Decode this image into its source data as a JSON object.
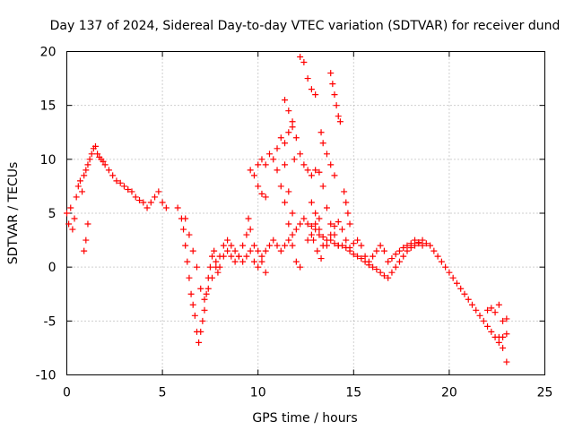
{
  "chart_data": {
    "type": "scatter",
    "title": "Day 137 of 2024, Sidereal Day-to-day VTEC variation (SDTVAR) for receiver dund",
    "xlabel": "GPS time / hours",
    "ylabel": "SDTVAR / TECUs",
    "xlim": [
      0,
      25
    ],
    "ylim": [
      -10,
      20
    ],
    "xticks": [
      0,
      5,
      10,
      15,
      20,
      25
    ],
    "yticks": [
      -10,
      -5,
      0,
      5,
      10,
      15,
      20
    ],
    "xtick_labels": [
      "0",
      "5",
      "10",
      "15",
      "20",
      "25"
    ],
    "ytick_labels": [
      "-10",
      "-5",
      "0",
      "5",
      "10",
      "15",
      "20"
    ],
    "grid": true,
    "marker": "+",
    "color": "#ff0000",
    "series": [
      {
        "name": "main-trace",
        "points": [
          [
            0.0,
            5.0
          ],
          [
            0.1,
            4.0
          ],
          [
            0.2,
            5.5
          ],
          [
            0.3,
            3.5
          ],
          [
            0.4,
            4.5
          ],
          [
            0.5,
            6.5
          ],
          [
            0.6,
            7.5
          ],
          [
            0.7,
            8.0
          ],
          [
            0.8,
            7.0
          ],
          [
            0.9,
            8.5
          ],
          [
            1.0,
            9.0
          ],
          [
            1.1,
            9.5
          ],
          [
            1.2,
            10.0
          ],
          [
            1.3,
            10.5
          ],
          [
            1.4,
            11.0
          ],
          [
            1.5,
            11.2
          ],
          [
            1.6,
            10.5
          ],
          [
            1.7,
            10.2
          ],
          [
            1.8,
            10.0
          ],
          [
            1.9,
            9.8
          ],
          [
            2.0,
            9.5
          ],
          [
            2.2,
            9.0
          ],
          [
            2.4,
            8.5
          ],
          [
            2.6,
            8.0
          ],
          [
            2.8,
            7.8
          ],
          [
            3.0,
            7.5
          ],
          [
            3.2,
            7.2
          ],
          [
            3.4,
            7.0
          ],
          [
            3.6,
            6.5
          ],
          [
            3.8,
            6.2
          ],
          [
            4.0,
            6.0
          ],
          [
            4.2,
            5.5
          ],
          [
            4.4,
            6.0
          ],
          [
            4.6,
            6.5
          ],
          [
            4.8,
            7.0
          ],
          [
            5.0,
            6.0
          ],
          [
            5.2,
            5.5
          ],
          [
            5.8,
            5.5
          ],
          [
            6.0,
            4.5
          ],
          [
            6.1,
            3.5
          ],
          [
            6.2,
            2.0
          ],
          [
            6.3,
            0.5
          ],
          [
            6.4,
            -1.0
          ],
          [
            6.5,
            -2.5
          ],
          [
            6.6,
            -3.5
          ],
          [
            6.7,
            -4.5
          ],
          [
            6.8,
            -6.0
          ],
          [
            6.9,
            -7.0
          ],
          [
            7.0,
            -6.0
          ],
          [
            7.1,
            -5.0
          ],
          [
            7.2,
            -4.0
          ],
          [
            7.3,
            -2.5
          ],
          [
            7.4,
            -1.0
          ],
          [
            7.5,
            0.0
          ],
          [
            7.6,
            1.0
          ],
          [
            7.7,
            1.5
          ],
          [
            7.8,
            0.5
          ],
          [
            7.9,
            -0.5
          ],
          [
            8.0,
            0.0
          ],
          [
            8.2,
            1.0
          ],
          [
            8.4,
            1.5
          ],
          [
            8.6,
            1.0
          ],
          [
            8.8,
            0.5
          ],
          [
            9.0,
            1.0
          ],
          [
            9.2,
            0.5
          ],
          [
            9.4,
            1.0
          ],
          [
            9.6,
            1.5
          ],
          [
            9.8,
            0.5
          ],
          [
            10.0,
            0.0
          ],
          [
            10.2,
            1.0
          ],
          [
            10.4,
            1.5
          ],
          [
            10.6,
            2.0
          ],
          [
            10.8,
            2.5
          ],
          [
            11.0,
            2.0
          ],
          [
            11.2,
            1.5
          ],
          [
            11.4,
            2.0
          ],
          [
            11.6,
            2.5
          ],
          [
            11.8,
            3.0
          ],
          [
            12.0,
            3.5
          ],
          [
            12.2,
            4.0
          ],
          [
            12.4,
            4.5
          ],
          [
            12.6,
            4.0
          ],
          [
            12.8,
            3.8
          ],
          [
            13.0,
            3.5
          ],
          [
            13.2,
            3.0
          ],
          [
            13.4,
            2.8
          ],
          [
            13.6,
            2.5
          ],
          [
            13.8,
            2.5
          ],
          [
            14.0,
            2.2
          ],
          [
            14.2,
            2.0
          ],
          [
            14.4,
            2.0
          ],
          [
            14.6,
            1.8
          ],
          [
            14.8,
            1.5
          ],
          [
            15.0,
            1.2
          ],
          [
            15.2,
            1.0
          ],
          [
            15.4,
            0.8
          ],
          [
            15.6,
            0.5
          ],
          [
            15.8,
            0.2
          ],
          [
            16.0,
            0.0
          ],
          [
            16.2,
            -0.2
          ],
          [
            16.4,
            -0.5
          ],
          [
            16.6,
            -0.8
          ],
          [
            16.8,
            -1.0
          ],
          [
            17.0,
            -0.5
          ],
          [
            17.2,
            0.0
          ],
          [
            17.4,
            0.5
          ],
          [
            17.6,
            1.0
          ],
          [
            17.8,
            1.5
          ],
          [
            18.0,
            1.8
          ],
          [
            18.2,
            2.0
          ],
          [
            18.4,
            2.2
          ],
          [
            18.6,
            2.5
          ],
          [
            18.8,
            2.2
          ],
          [
            19.0,
            2.0
          ],
          [
            19.2,
            1.5
          ],
          [
            19.4,
            1.0
          ],
          [
            19.6,
            0.5
          ],
          [
            19.8,
            0.0
          ],
          [
            20.0,
            -0.5
          ],
          [
            20.2,
            -1.0
          ],
          [
            20.4,
            -1.5
          ],
          [
            20.6,
            -2.0
          ],
          [
            20.8,
            -2.5
          ],
          [
            21.0,
            -3.0
          ],
          [
            21.2,
            -3.5
          ],
          [
            21.4,
            -4.0
          ],
          [
            21.6,
            -4.5
          ],
          [
            21.8,
            -5.0
          ],
          [
            22.0,
            -5.5
          ],
          [
            22.2,
            -6.0
          ],
          [
            22.4,
            -6.5
          ],
          [
            22.6,
            -7.0
          ],
          [
            22.8,
            -7.5
          ],
          [
            23.0,
            -8.8
          ]
        ]
      },
      {
        "name": "secondary-trace",
        "points": [
          [
            0.9,
            1.5
          ],
          [
            1.0,
            2.5
          ],
          [
            1.1,
            4.0
          ],
          [
            6.2,
            4.5
          ],
          [
            6.4,
            3.0
          ],
          [
            6.6,
            1.5
          ],
          [
            6.8,
            0.0
          ],
          [
            7.0,
            -2.0
          ],
          [
            7.2,
            -3.0
          ],
          [
            7.4,
            -2.0
          ],
          [
            7.6,
            -1.0
          ],
          [
            7.8,
            0.0
          ],
          [
            8.0,
            1.0
          ],
          [
            8.2,
            2.0
          ],
          [
            8.4,
            2.5
          ],
          [
            8.6,
            2.0
          ],
          [
            8.8,
            1.5
          ],
          [
            9.0,
            1.0
          ],
          [
            9.2,
            2.0
          ],
          [
            9.4,
            3.0
          ],
          [
            9.5,
            4.5
          ],
          [
            9.6,
            3.5
          ],
          [
            9.8,
            2.0
          ],
          [
            10.0,
            1.5
          ],
          [
            10.2,
            0.5
          ],
          [
            10.4,
            -0.5
          ],
          [
            12.6,
            2.5
          ],
          [
            12.8,
            3.0
          ],
          [
            13.0,
            4.0
          ],
          [
            13.2,
            3.5
          ],
          [
            13.4,
            2.0
          ],
          [
            13.6,
            2.0
          ],
          [
            13.8,
            3.0
          ],
          [
            14.0,
            3.8
          ],
          [
            14.2,
            4.2
          ],
          [
            14.4,
            3.5
          ],
          [
            14.6,
            2.5
          ],
          [
            14.8,
            1.8
          ],
          [
            15.0,
            2.2
          ],
          [
            15.2,
            2.5
          ],
          [
            15.4,
            2.0
          ],
          [
            15.6,
            1.0
          ],
          [
            15.8,
            0.5
          ],
          [
            16.0,
            1.0
          ],
          [
            16.2,
            1.5
          ],
          [
            16.4,
            2.0
          ],
          [
            16.6,
            1.5
          ],
          [
            16.8,
            0.5
          ],
          [
            17.0,
            0.8
          ],
          [
            17.2,
            1.2
          ],
          [
            17.4,
            1.5
          ],
          [
            17.6,
            1.8
          ],
          [
            17.8,
            2.0
          ],
          [
            18.0,
            2.2
          ],
          [
            18.2,
            2.5
          ],
          [
            18.4,
            2.3
          ],
          [
            18.6,
            2.0
          ],
          [
            22.0,
            -4.0
          ],
          [
            22.2,
            -3.8
          ],
          [
            22.4,
            -4.2
          ],
          [
            22.6,
            -3.5
          ],
          [
            22.8,
            -5.0
          ],
          [
            23.0,
            -4.8
          ],
          [
            22.6,
            -6.5
          ],
          [
            22.8,
            -6.5
          ],
          [
            23.0,
            -6.2
          ]
        ]
      },
      {
        "name": "segment-9-to-12",
        "points": [
          [
            9.6,
            9.0
          ],
          [
            9.8,
            8.5
          ],
          [
            10.0,
            9.5
          ],
          [
            10.2,
            10.0
          ],
          [
            10.4,
            9.5
          ],
          [
            10.6,
            10.5
          ],
          [
            10.8,
            10.0
          ],
          [
            11.0,
            9.0
          ],
          [
            11.2,
            7.5
          ],
          [
            11.4,
            6.0
          ],
          [
            11.6,
            4.0
          ],
          [
            11.8,
            2.0
          ],
          [
            12.0,
            0.5
          ],
          [
            12.2,
            0.0
          ],
          [
            10.0,
            7.5
          ],
          [
            10.2,
            6.8
          ],
          [
            10.4,
            6.5
          ],
          [
            11.4,
            11.5
          ],
          [
            11.6,
            12.5
          ],
          [
            11.8,
            13.0
          ],
          [
            11.9,
            10.0
          ],
          [
            11.0,
            11.0
          ],
          [
            11.2,
            12.0
          ],
          [
            11.4,
            9.5
          ],
          [
            11.6,
            7.0
          ],
          [
            11.8,
            5.0
          ]
        ]
      },
      {
        "name": "segment-12-to-14",
        "points": [
          [
            11.4,
            15.5
          ],
          [
            11.6,
            14.5
          ],
          [
            11.8,
            13.5
          ],
          [
            12.0,
            12.0
          ],
          [
            12.2,
            10.5
          ],
          [
            12.4,
            9.5
          ],
          [
            12.6,
            9.0
          ],
          [
            12.8,
            8.5
          ],
          [
            13.0,
            9.0
          ],
          [
            13.2,
            8.8
          ],
          [
            13.4,
            7.5
          ],
          [
            13.6,
            5.5
          ],
          [
            13.8,
            4.0
          ],
          [
            14.0,
            3.0
          ],
          [
            14.2,
            2.0
          ],
          [
            12.2,
            19.5
          ],
          [
            12.4,
            19.0
          ],
          [
            12.6,
            17.5
          ],
          [
            12.8,
            16.5
          ],
          [
            13.0,
            16.0
          ],
          [
            13.3,
            12.5
          ],
          [
            13.4,
            11.5
          ],
          [
            13.6,
            10.5
          ],
          [
            13.8,
            9.5
          ],
          [
            14.0,
            8.5
          ],
          [
            13.8,
            18.0
          ],
          [
            13.9,
            17.0
          ],
          [
            14.0,
            16.0
          ],
          [
            14.1,
            15.0
          ],
          [
            14.2,
            14.0
          ],
          [
            14.3,
            13.5
          ],
          [
            14.5,
            7.0
          ],
          [
            14.6,
            6.0
          ],
          [
            14.7,
            5.0
          ],
          [
            14.8,
            4.0
          ],
          [
            12.8,
            6.0
          ],
          [
            13.0,
            5.0
          ],
          [
            13.2,
            4.5
          ],
          [
            12.9,
            2.5
          ],
          [
            13.1,
            1.5
          ],
          [
            13.3,
            0.8
          ]
        ]
      }
    ]
  }
}
